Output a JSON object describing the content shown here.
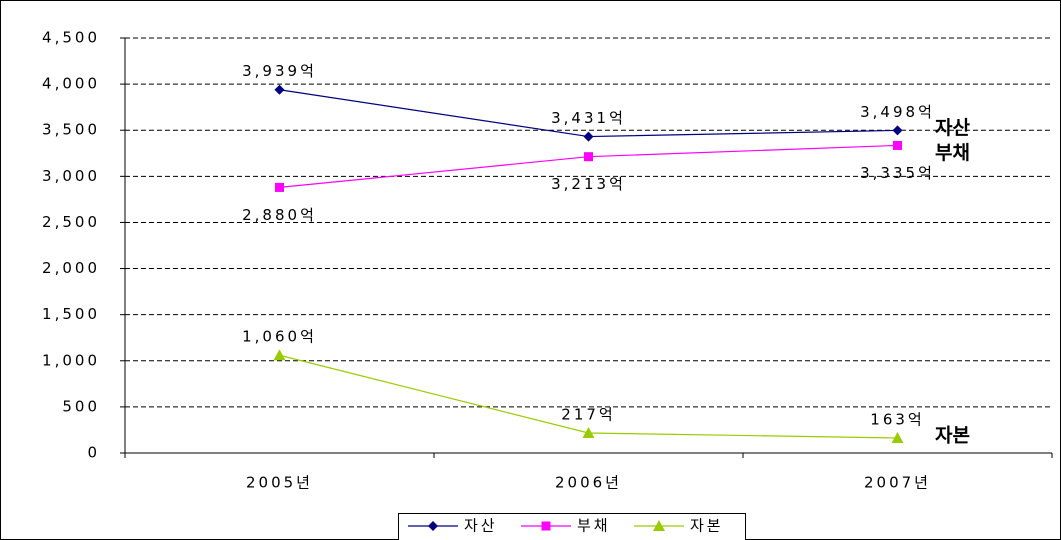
{
  "chart_data": {
    "type": "line",
    "categories": [
      "2005년",
      "2006년",
      "2007년"
    ],
    "series": [
      {
        "name": "자산",
        "color": "#000080",
        "marker": "diamond",
        "values": [
          3939,
          3431,
          3498
        ],
        "value_labels": [
          "3,939억",
          "3,431억",
          "3,498억"
        ]
      },
      {
        "name": "부채",
        "color": "#ff00ff",
        "marker": "square",
        "values": [
          2880,
          3213,
          3335
        ],
        "value_labels": [
          "2,880억",
          "3,213억",
          "3,335억"
        ]
      },
      {
        "name": "자본",
        "color": "#99cc00",
        "marker": "triangle",
        "values": [
          1060,
          217,
          163
        ],
        "value_labels": [
          "1,060억",
          "217억",
          "163억"
        ]
      }
    ],
    "ylim": [
      0,
      4500
    ],
    "yticks": [
      0,
      500,
      {
        "value": 1000,
        "label": "1,000"
      },
      {
        "value": 1500,
        "label": "1,500"
      },
      {
        "value": 2000,
        "label": "2,000"
      },
      {
        "value": 2500,
        "label": "2,500"
      },
      {
        "value": 3000,
        "label": "3,000"
      },
      {
        "value": 3500,
        "label": "3,500"
      },
      {
        "value": 4000,
        "label": "4,000"
      },
      {
        "value": 4500,
        "label": "4,500"
      }
    ],
    "grid": true,
    "legend": "bottom"
  }
}
